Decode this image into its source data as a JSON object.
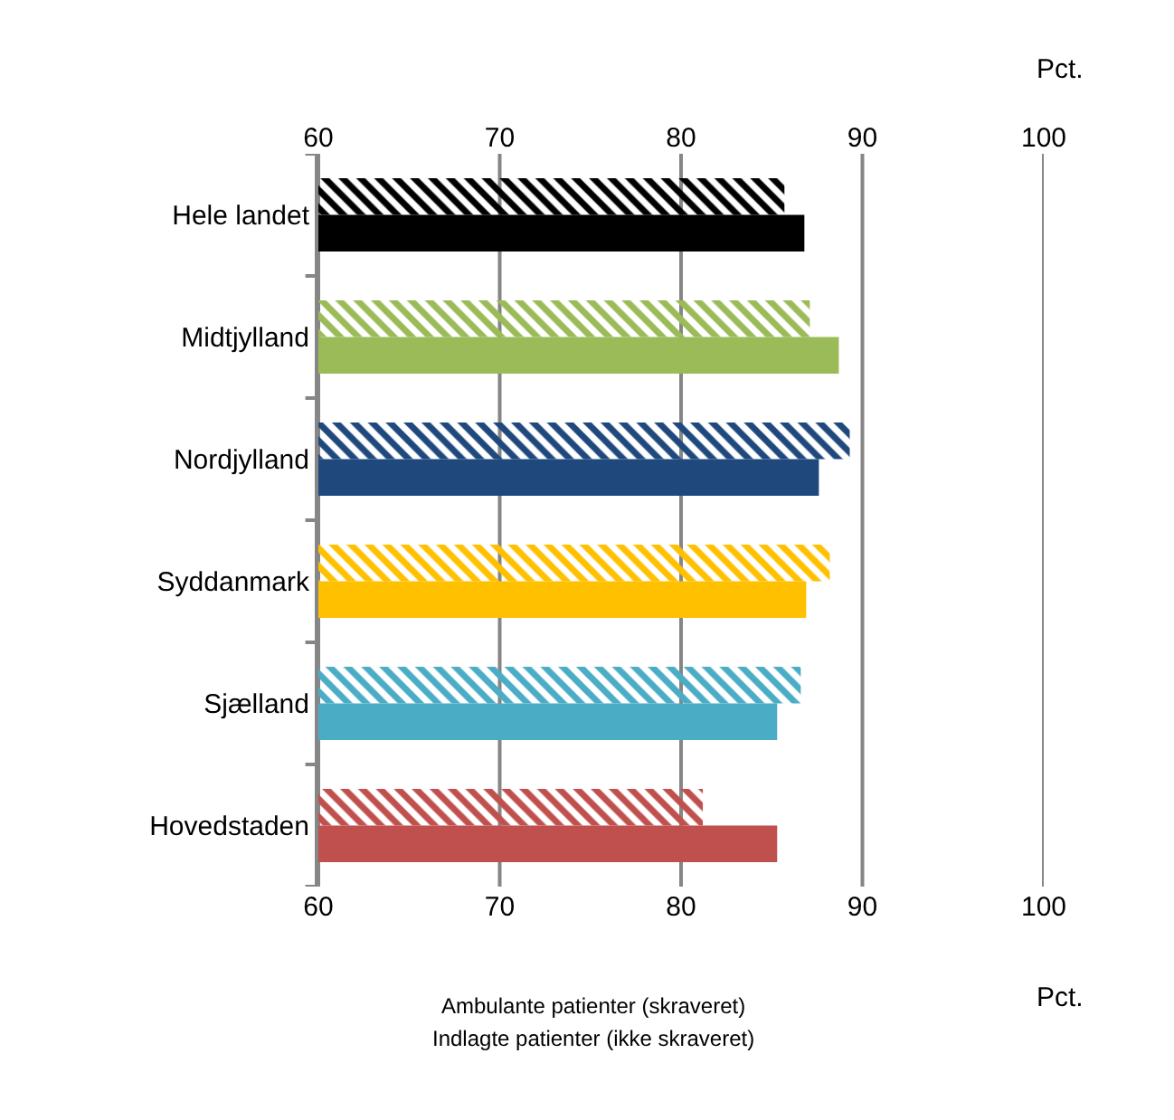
{
  "chart_data": {
    "type": "bar",
    "orientation": "horizontal",
    "categories": [
      "Hele landet",
      "Midtjylland",
      "Nordjylland",
      "Syddanmark",
      "Sjælland",
      "Hovedstaden"
    ],
    "series": [
      {
        "axis": "x2",
        "colors": [
          "#000000",
          "#9bbb59",
          "#1f497d",
          "#ffc000",
          "#4bacc6",
          "#c0504d"
        ],
        "values": [
          85.7,
          87.1,
          89.3,
          88.2,
          86.6,
          81.2
        ]
      },
      {
        "colors": [
          "#000000",
          "#9bbb59",
          "#1f497d",
          "#ffc000",
          "#4bacc6",
          "#c0504d"
        ],
        "values": [
          86.8,
          88.7,
          87.6,
          86.9,
          85.3,
          85.3
        ]
      }
    ],
    "xlim": [
      60,
      100
    ],
    "xticks": [
      60,
      70,
      80,
      90,
      100
    ],
    "xlabel": "Pct.",
    "x2lim": [
      60,
      100
    ],
    "x2ticks": [
      60,
      70,
      80,
      90,
      100
    ],
    "x2label": "Pct.",
    "grid": "x",
    "annotations": [
      "Ambulante patienter (skraveret)",
      "Indlagte patienter (ikke skraveret)"
    ]
  }
}
